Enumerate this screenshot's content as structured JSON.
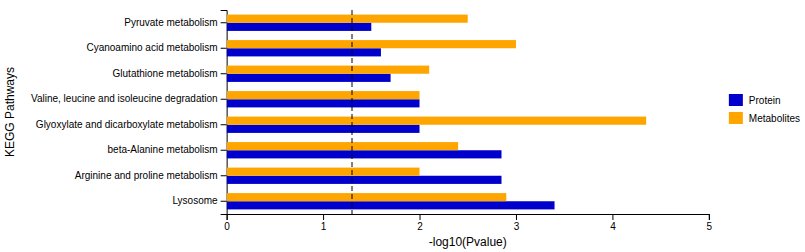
{
  "chart_data": {
    "type": "bar",
    "orientation": "horizontal",
    "categories": [
      "Lysosome",
      "Arginine and proline metabolism",
      "beta-Alanine metabolism",
      "Glyoxylate and dicarboxylate metabolism",
      "Valine, leucine and isoleucine degradation",
      "Glutathione metabolism",
      "Cyanoamino acid metabolism",
      "Pyruvate metabolism"
    ],
    "series": [
      {
        "name": "Protein",
        "color": "#0000cc",
        "values": [
          3.4,
          2.85,
          2.85,
          2.0,
          2.0,
          1.7,
          1.6,
          1.5
        ]
      },
      {
        "name": "Metabolites",
        "color": "#FFA500",
        "values": [
          2.9,
          2.0,
          2.4,
          4.35,
          2.0,
          2.1,
          3.0,
          2.5
        ]
      }
    ],
    "xlabel": "-log10(Pvalue)",
    "ylabel": "KEGG Pathways",
    "xlim": [
      0,
      5
    ],
    "xticks": [
      0,
      1,
      2,
      3,
      4,
      5
    ],
    "threshold": 1.3,
    "legend": "right"
  }
}
